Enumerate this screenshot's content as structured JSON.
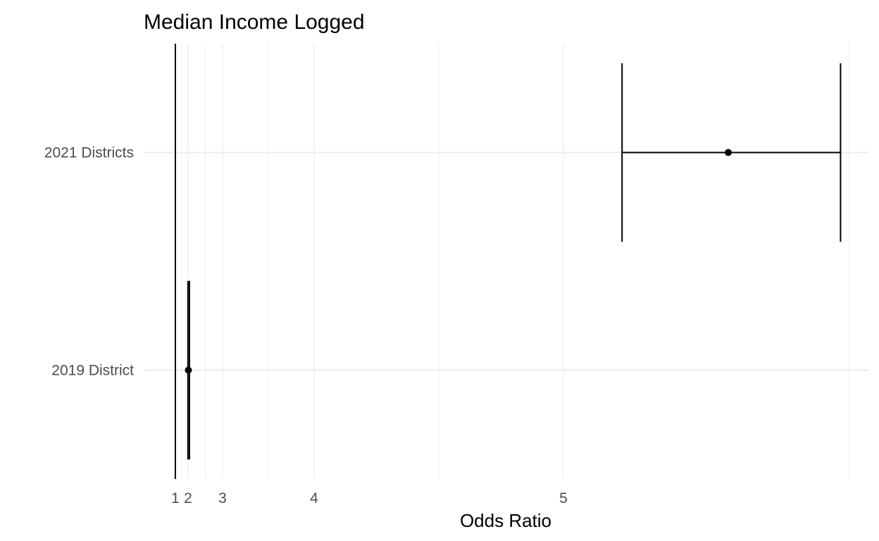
{
  "chart_data": {
    "type": "forest",
    "title": "Median Income Logged",
    "xlabel": "Odds Ratio",
    "ylabel": "",
    "x_scale": "log-like (non-linear tick spacing)",
    "x_ticks": [
      1,
      2,
      3,
      4,
      5
    ],
    "reference_line": 1,
    "grid": true,
    "categories": [
      "2021 Districts",
      "2019 District"
    ],
    "series": [
      {
        "estimate": [
          5.45,
          2.01
        ],
        "lower": [
          5.16,
          1.99
        ],
        "upper": [
          5.96,
          2.04
        ]
      }
    ],
    "colors": {
      "marks": "#000000",
      "grid": "#ebebeb",
      "text": "#4d4d4d"
    }
  }
}
